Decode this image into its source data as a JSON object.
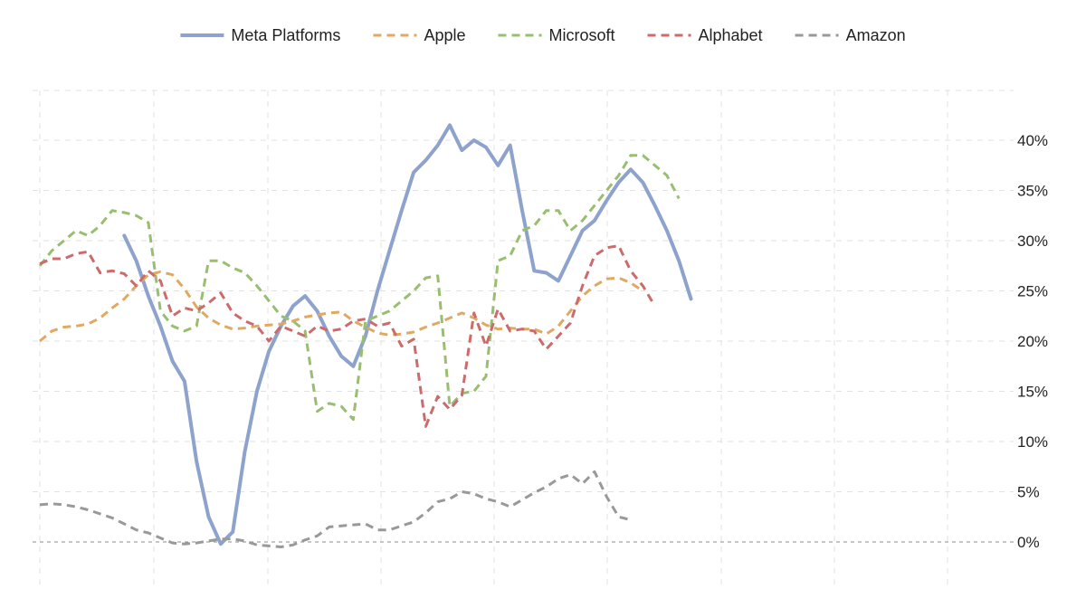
{
  "chart_data": {
    "type": "line",
    "x_count": 81,
    "grid": true,
    "legend_position": "top",
    "y_axis_side": "right",
    "ylim": [
      -4,
      49
    ],
    "yticks": [
      {
        "value": 0,
        "label": "0%"
      },
      {
        "value": 5,
        "label": "5%"
      },
      {
        "value": 10,
        "label": "10%"
      },
      {
        "value": 15,
        "label": "15%"
      },
      {
        "value": 20,
        "label": "20%"
      },
      {
        "value": 25,
        "label": "25%"
      },
      {
        "value": 30,
        "label": "30%"
      },
      {
        "value": 35,
        "label": "35%"
      },
      {
        "value": 40,
        "label": "40%"
      }
    ],
    "series": [
      {
        "name": "Meta Platforms",
        "color": "#8da2cc",
        "style": "solid",
        "start_index": 7,
        "values": [
          30.5,
          28.0,
          24.5,
          21.5,
          18.0,
          16.0,
          8.0,
          2.5,
          -0.2,
          1.0,
          9.0,
          15.0,
          19.0,
          21.5,
          23.5,
          24.5,
          23.0,
          20.5,
          18.5,
          17.5,
          20.5,
          25.0,
          29.0,
          33.0,
          36.8,
          38.0,
          39.5,
          41.5,
          39.0,
          40.0,
          39.3,
          37.5,
          39.5,
          33.0,
          27.0,
          26.8,
          26.0,
          28.5,
          31.0,
          32.0,
          34.0,
          35.8,
          37.1,
          35.8,
          33.5,
          31.0,
          28.0,
          24.2
        ]
      },
      {
        "name": "Apple",
        "color": "#e0a963",
        "style": "dashed",
        "start_index": 0,
        "values": [
          20.0,
          21.0,
          21.4,
          21.5,
          21.7,
          22.3,
          23.3,
          24.2,
          25.5,
          26.6,
          26.9,
          26.6,
          25.2,
          23.4,
          22.3,
          21.6,
          21.2,
          21.3,
          21.5,
          21.6,
          21.7,
          22.0,
          22.4,
          22.6,
          22.8,
          22.9,
          22.0,
          21.4,
          20.8,
          20.6,
          20.7,
          20.9,
          21.4,
          21.8,
          22.3,
          22.8,
          22.3,
          21.6,
          21.2,
          21.3,
          21.2,
          21.2,
          20.7,
          21.5,
          23.0,
          24.5,
          25.5,
          26.2,
          26.3,
          25.8,
          25.0
        ]
      },
      {
        "name": "Microsoft",
        "color": "#98bf70",
        "style": "dashed",
        "start_index": 0,
        "values": [
          27.5,
          29.0,
          30.0,
          31.0,
          30.5,
          31.5,
          33.0,
          32.8,
          32.5,
          31.8,
          23.0,
          21.5,
          21.0,
          21.5,
          28.0,
          28.0,
          27.3,
          26.8,
          25.5,
          24.0,
          22.5,
          22.0,
          21.0,
          13.0,
          13.8,
          13.5,
          12.2,
          22.0,
          22.5,
          23.0,
          24.0,
          25.0,
          26.3,
          26.5,
          13.5,
          14.8,
          15.0,
          16.5,
          28.0,
          28.5,
          31.0,
          31.5,
          33.0,
          33.0,
          31.0,
          32.0,
          33.5,
          35.0,
          36.5,
          38.5,
          38.5,
          37.5,
          36.5,
          34.2
        ]
      },
      {
        "name": "Alphabet",
        "color": "#cc6b6b",
        "style": "dashed",
        "start_index": 0,
        "values": [
          27.7,
          28.2,
          28.2,
          28.7,
          28.9,
          26.8,
          27.0,
          26.7,
          25.5,
          27.0,
          26.0,
          22.5,
          23.3,
          23.0,
          23.8,
          24.8,
          22.8,
          22.0,
          21.5,
          20.0,
          21.5,
          21.0,
          20.5,
          21.5,
          21.0,
          21.2,
          22.0,
          22.2,
          21.5,
          21.8,
          19.5,
          20.2,
          11.5,
          14.5,
          13.2,
          14.6,
          22.8,
          19.5,
          23.2,
          21.0,
          21.2,
          21.0,
          19.2,
          20.5,
          21.8,
          25.5,
          28.5,
          29.3,
          29.5,
          27.0,
          25.5,
          23.5
        ]
      },
      {
        "name": "Amazon",
        "color": "#999999",
        "style": "dashed",
        "start_index": 0,
        "values": [
          3.7,
          3.8,
          3.7,
          3.5,
          3.2,
          2.8,
          2.4,
          1.8,
          1.2,
          0.9,
          0.4,
          -0.1,
          -0.2,
          -0.1,
          0.1,
          0.3,
          0.3,
          0.1,
          -0.3,
          -0.4,
          -0.5,
          -0.3,
          0.2,
          0.6,
          1.5,
          1.6,
          1.7,
          1.8,
          1.2,
          1.2,
          1.6,
          2.0,
          2.9,
          4.0,
          4.3,
          5.0,
          4.8,
          4.3,
          4.0,
          3.5,
          4.2,
          4.9,
          5.5,
          6.3,
          6.7,
          5.8,
          7.0,
          4.5,
          2.5,
          2.2
        ]
      }
    ]
  }
}
